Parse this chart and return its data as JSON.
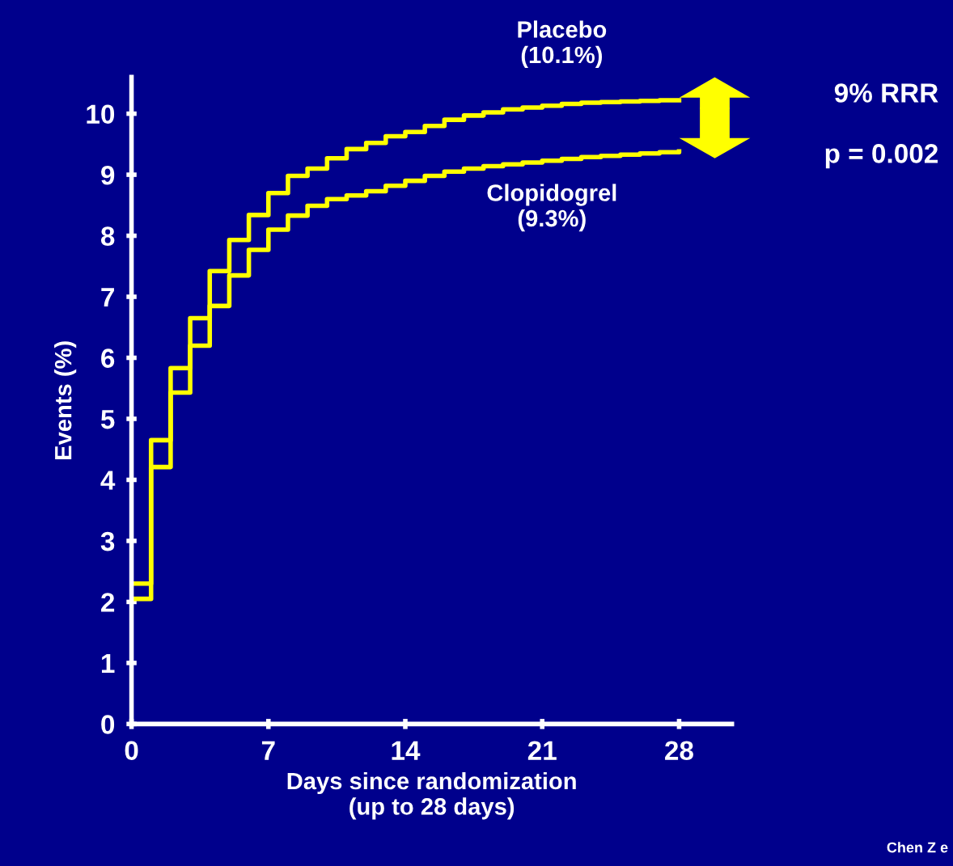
{
  "chart_data": {
    "type": "step",
    "xlabel": "Days since randomization\n(up to 28 days)",
    "ylabel": "Events (%)",
    "x": [
      0,
      1,
      2,
      3,
      4,
      5,
      6,
      7,
      8,
      9,
      10,
      11,
      12,
      13,
      14,
      15,
      16,
      17,
      18,
      19,
      20,
      21,
      22,
      23,
      24,
      25,
      26,
      27,
      28
    ],
    "series": [
      {
        "name": "Placebo\n(10.1%)",
        "color": "#ffff00",
        "values": [
          2.3,
          4.65,
          5.83,
          6.65,
          7.42,
          7.93,
          8.34,
          8.7,
          8.98,
          9.1,
          9.27,
          9.42,
          9.52,
          9.63,
          9.7,
          9.8,
          9.9,
          9.97,
          10.02,
          10.07,
          10.1,
          10.13,
          10.16,
          10.18,
          10.19,
          10.2,
          10.21,
          10.22,
          10.22
        ]
      },
      {
        "name": "Clopidogrel\n(9.3%)",
        "color": "#ffff00",
        "values": [
          2.05,
          4.21,
          5.43,
          6.2,
          6.85,
          7.35,
          7.77,
          8.1,
          8.33,
          8.49,
          8.6,
          8.66,
          8.73,
          8.82,
          8.9,
          8.98,
          9.05,
          9.1,
          9.14,
          9.17,
          9.2,
          9.23,
          9.26,
          9.29,
          9.31,
          9.33,
          9.35,
          9.37,
          9.38
        ]
      }
    ],
    "xlim": [
      0,
      30.7
    ],
    "xticks": [
      0,
      7,
      14,
      21,
      28
    ],
    "ylim": [
      0,
      10.6
    ],
    "yticks": [
      0,
      1,
      2,
      3,
      4,
      5,
      6,
      7,
      8,
      9,
      10
    ],
    "grid": false,
    "legend": false,
    "annotations": [
      "9% RRR",
      "p = 0.002",
      "Chen Z e"
    ]
  }
}
